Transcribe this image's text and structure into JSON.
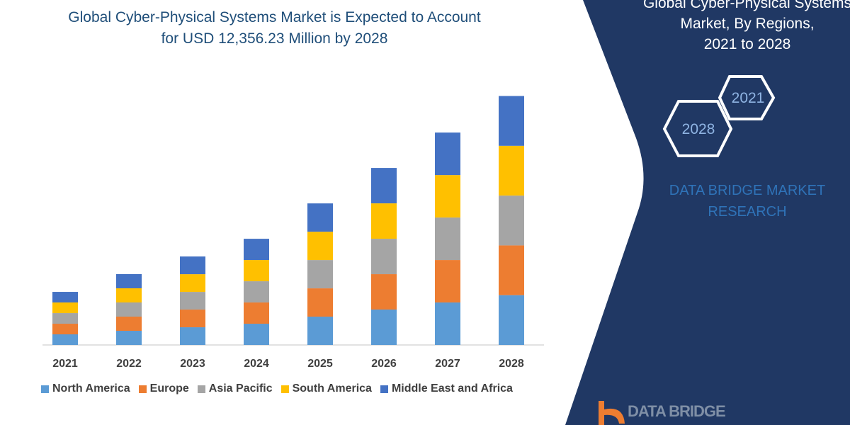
{
  "title": [
    "Global Cyber-Physical Systems Market is Expected to Account",
    "for USD 12,356.23 Million by 2028"
  ],
  "side_panel": {
    "title": [
      "Global Cyber-Physical Systems",
      "Market, By Regions,",
      "2021 to 2028"
    ],
    "hex_labels": [
      "2021",
      "2028"
    ],
    "brand": [
      "DATA BRIDGE MARKET",
      "RESEARCH"
    ],
    "logo_text": "DATA BRIDGE",
    "background_color": "#203864"
  },
  "chart_data": {
    "type": "bar",
    "stacked": true,
    "categories": [
      "2021",
      "2022",
      "2023",
      "2024",
      "2025",
      "2026",
      "2027",
      "2028"
    ],
    "series": [
      {
        "name": "North America",
        "color": "#5b9bd5",
        "values": [
          527,
          703,
          878,
          1054,
          1405,
          1757,
          2108,
          2471
        ]
      },
      {
        "name": "Europe",
        "color": "#ed7d31",
        "values": [
          527,
          703,
          878,
          1054,
          1405,
          1757,
          2108,
          2471
        ]
      },
      {
        "name": "Asia Pacific",
        "color": "#a5a5a5",
        "values": [
          527,
          703,
          878,
          1054,
          1405,
          1757,
          2108,
          2471
        ]
      },
      {
        "name": "South America",
        "color": "#ffc000",
        "values": [
          527,
          703,
          878,
          1054,
          1405,
          1757,
          2108,
          2471
        ]
      },
      {
        "name": "Middle East and Africa",
        "color": "#4472c4",
        "values": [
          527,
          703,
          878,
          1054,
          1405,
          1757,
          2108,
          2471
        ]
      }
    ],
    "ylabel": "",
    "xlabel": "",
    "grid": false,
    "legend_position": "bottom"
  }
}
